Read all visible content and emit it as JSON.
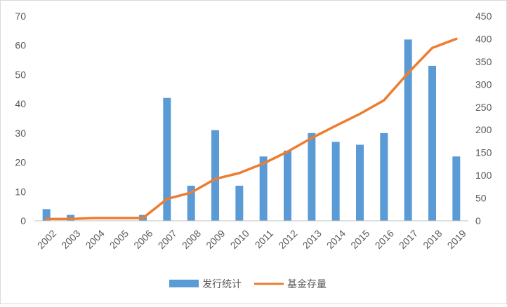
{
  "chart_data": {
    "type": "bar",
    "categories": [
      "2002",
      "2003",
      "2004",
      "2005",
      "2006",
      "2007",
      "2008",
      "2009",
      "2010",
      "2011",
      "2012",
      "2013",
      "2014",
      "2015",
      "2016",
      "2017",
      "2018",
      "2019"
    ],
    "series": [
      {
        "name": "发行统计",
        "type": "bar",
        "axis": "left",
        "color": "#5b9bd5",
        "values": [
          4,
          2,
          0,
          0,
          2,
          42,
          12,
          31,
          12,
          22,
          24,
          30,
          27,
          26,
          30,
          62,
          53,
          22
        ]
      },
      {
        "name": "基金存量",
        "type": "line",
        "axis": "right",
        "color": "#ed7d31",
        "values": [
          4,
          4,
          6,
          6,
          6,
          48,
          62,
          92,
          105,
          126,
          152,
          182,
          209,
          235,
          265,
          325,
          380,
          400
        ]
      }
    ],
    "y_left": {
      "min": 0,
      "max": 70,
      "ticks": [
        0,
        10,
        20,
        30,
        40,
        50,
        60,
        70
      ]
    },
    "y_right": {
      "min": 0,
      "max": 450,
      "ticks": [
        0,
        50,
        100,
        150,
        200,
        250,
        300,
        350,
        400,
        450
      ]
    },
    "grid": false,
    "legend_position": "bottom",
    "legend": [
      "发行统计",
      "基金存量"
    ]
  }
}
